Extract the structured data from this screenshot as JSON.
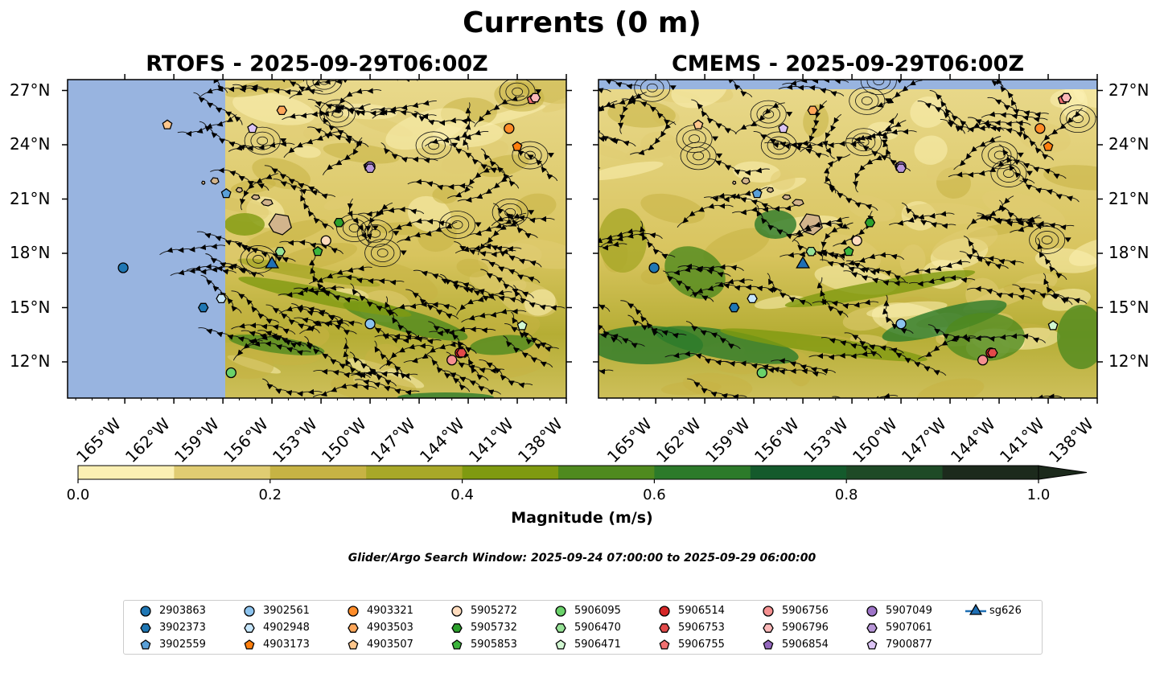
{
  "title": "Currents (0 m)",
  "panels": [
    {
      "title": "RTOFS - 2025-09-29T06:00Z",
      "model": "RTOFS"
    },
    {
      "title": "CMEMS - 2025-09-29T06:00Z",
      "model": "CMEMS"
    }
  ],
  "lat_labels": [
    "27°N",
    "24°N",
    "21°N",
    "18°N",
    "15°N",
    "12°N"
  ],
  "lon_labels": [
    "165°W",
    "162°W",
    "159°W",
    "156°W",
    "153°W",
    "150°W",
    "147°W",
    "144°W",
    "141°W",
    "138°W"
  ],
  "colorbar": {
    "label": "Magnitude (m/s)",
    "ticks": [
      "0.0",
      "0.2",
      "0.4",
      "0.6",
      "0.8",
      "1.0"
    ],
    "colors": [
      "#fbf0b3",
      "#e0cc72",
      "#c7b344",
      "#a8a828",
      "#7f9a10",
      "#4f8a1e",
      "#2c7a2a",
      "#145a2c",
      "#1e4a26",
      "#1c2a1c"
    ]
  },
  "search_window": "Glider/Argo Search Window: 2025-09-24 07:00:00 to 2025-09-29 06:00:00",
  "colors": {
    "land_mask": "#98b4e0",
    "island": "#d2b48c",
    "glider": "#1f6fb4"
  },
  "legend": [
    {
      "id": "2903863",
      "marker": "circle",
      "color": "#1f77b4"
    },
    {
      "id": "3902373",
      "marker": "hexagon",
      "color": "#1f77b4"
    },
    {
      "id": "3902559",
      "marker": "pentagon",
      "color": "#5aa0d8"
    },
    {
      "id": "3902561",
      "marker": "circle",
      "color": "#8cc3ee"
    },
    {
      "id": "4902948",
      "marker": "hexagon",
      "color": "#c6e6fb"
    },
    {
      "id": "4903173",
      "marker": "pentagon",
      "color": "#ff7f0e"
    },
    {
      "id": "4903321",
      "marker": "circle",
      "color": "#ff8c28"
    },
    {
      "id": "4903503",
      "marker": "hexagon",
      "color": "#ffa75a"
    },
    {
      "id": "4903507",
      "marker": "pentagon",
      "color": "#ffc78c"
    },
    {
      "id": "5905272",
      "marker": "circle",
      "color": "#ffdcbe"
    },
    {
      "id": "5905732",
      "marker": "hexagon",
      "color": "#2ca02c"
    },
    {
      "id": "5905853",
      "marker": "pentagon",
      "color": "#3cb43c"
    },
    {
      "id": "5906095",
      "marker": "circle",
      "color": "#6ad26a"
    },
    {
      "id": "5906470",
      "marker": "hexagon",
      "color": "#96e296"
    },
    {
      "id": "5906471",
      "marker": "pentagon",
      "color": "#d2f7d2"
    },
    {
      "id": "5906514",
      "marker": "circle",
      "color": "#d62728"
    },
    {
      "id": "5906753",
      "marker": "hexagon",
      "color": "#e24a4a"
    },
    {
      "id": "5906755",
      "marker": "pentagon",
      "color": "#f07070"
    },
    {
      "id": "5906756",
      "marker": "circle",
      "color": "#f59090"
    },
    {
      "id": "5906796",
      "marker": "hexagon",
      "color": "#fbb8b8"
    },
    {
      "id": "5906854",
      "marker": "pentagon",
      "color": "#9467bd"
    },
    {
      "id": "5907049",
      "marker": "circle",
      "color": "#9e74c8"
    },
    {
      "id": "5907061",
      "marker": "hexagon",
      "color": "#b896d8"
    },
    {
      "id": "7900877",
      "marker": "pentagon",
      "color": "#dcc4f5"
    },
    {
      "id": "sg626",
      "marker": "triangle",
      "color": "#1f6fb4"
    }
  ],
  "floats": [
    {
      "id": "2903863",
      "lon": -165.1,
      "lat": 17.2
    },
    {
      "id": "3902373",
      "lon": -160.2,
      "lat": 15.0
    },
    {
      "id": "3902559",
      "lon": -158.8,
      "lat": 21.3
    },
    {
      "id": "3902561",
      "lon": -150.0,
      "lat": 14.1
    },
    {
      "id": "4902948",
      "lon": -159.1,
      "lat": 15.5
    },
    {
      "id": "4903173",
      "lon": -141.0,
      "lat": 23.9
    },
    {
      "id": "4903321",
      "lon": -141.5,
      "lat": 24.9
    },
    {
      "id": "4903503",
      "lon": -155.4,
      "lat": 25.9
    },
    {
      "id": "4903507",
      "lon": -162.4,
      "lat": 25.1
    },
    {
      "id": "5905272",
      "lon": -152.7,
      "lat": 18.7
    },
    {
      "id": "5905732",
      "lon": -151.9,
      "lat": 19.7
    },
    {
      "id": "5905853",
      "lon": -153.2,
      "lat": 18.1
    },
    {
      "id": "5906095",
      "lon": -158.5,
      "lat": 11.4
    },
    {
      "id": "5906470",
      "lon": -155.5,
      "lat": 18.1
    },
    {
      "id": "5906471",
      "lon": -140.7,
      "lat": 14.0
    },
    {
      "id": "5906514",
      "lon": -144.5,
      "lat": 12.5
    },
    {
      "id": "5906753",
      "lon": -144.4,
      "lat": 12.5
    },
    {
      "id": "5906755",
      "lon": -140.1,
      "lat": 26.5
    },
    {
      "id": "5906756",
      "lon": -145.0,
      "lat": 12.1
    },
    {
      "id": "5906796",
      "lon": -139.9,
      "lat": 26.6
    },
    {
      "id": "5906854",
      "lon": -150.1,
      "lat": 22.8
    },
    {
      "id": "5907049",
      "lon": -150.0,
      "lat": 22.8
    },
    {
      "id": "5907061",
      "lon": -150.0,
      "lat": 22.7
    },
    {
      "id": "7900877",
      "lon": -157.2,
      "lat": 24.9
    },
    {
      "id": "sg626",
      "lon": -156.0,
      "lat": 17.4
    }
  ]
}
